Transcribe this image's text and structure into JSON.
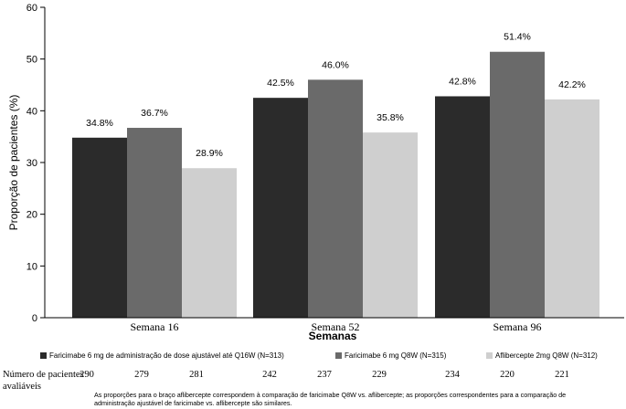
{
  "chart_data": {
    "type": "bar",
    "categories": [
      "Semana 16",
      "Semana 52",
      "Semana 96"
    ],
    "series": [
      {
        "name": "Faricimabe 6 mg de administração de dose ajustável até Q16W (N=313)",
        "values": [
          34.8,
          42.5,
          42.8
        ],
        "labels": [
          "34.8%",
          "42.5%",
          "42.8%"
        ],
        "color": "#2b2b2b"
      },
      {
        "name": "Faricimabe 6 mg Q8W (N=315)",
        "values": [
          36.7,
          46.0,
          51.4
        ],
        "labels": [
          "36.7%",
          "46.0%",
          "51.4%"
        ],
        "color": "#6a6a6a"
      },
      {
        "name": "Aflibercepte 2mg Q8W (N=312)",
        "values": [
          28.9,
          35.8,
          42.2
        ],
        "labels": [
          "28.9%",
          "35.8%",
          "42.2%"
        ],
        "color": "#cfcfcf"
      }
    ],
    "ylabel": "Proporção de pacientes (%)",
    "xlabel": "Semanas",
    "ylim": [
      0,
      60
    ],
    "yticks": [
      "0",
      "10",
      "20",
      "30",
      "40",
      "50",
      "60"
    ],
    "grid": false
  },
  "patients": {
    "label": "Número de pacientes avaliáveis",
    "counts": [
      [
        "290",
        "279",
        "281"
      ],
      [
        "242",
        "237",
        "229"
      ],
      [
        "234",
        "220",
        "221"
      ]
    ]
  },
  "footnote": "As proporções para o braço aflibercepte correspondem à comparação de faricimabe Q8W vs. aflibercepte; as proporções correspondentes para a comparação de administração ajustável de faricimabe vs. aflibercepte são similares."
}
